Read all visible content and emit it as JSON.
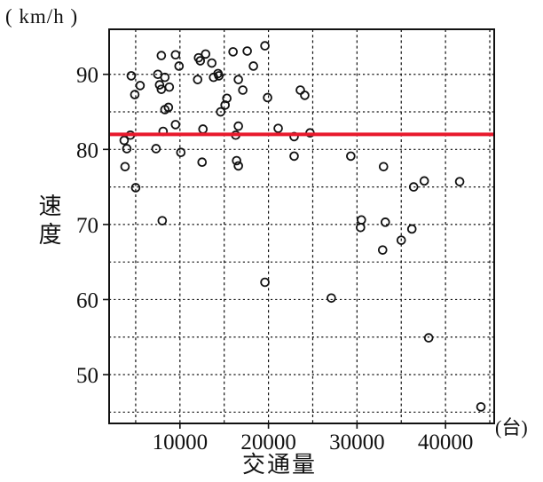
{
  "chart_data": {
    "type": "scatter",
    "title": "",
    "xlabel": "交通量",
    "xunit": "(台)",
    "ylabel": "速度",
    "yunit": "( km/h )",
    "xlim": [
      2000,
      45500
    ],
    "ylim": [
      43.5,
      96
    ],
    "x_ticks": [
      10000,
      20000,
      30000,
      40000
    ],
    "y_ticks": [
      90,
      80,
      70,
      60,
      50
    ],
    "x_gridlines": [
      5000,
      10000,
      15000,
      20000,
      25000,
      30000,
      35000,
      40000,
      45000
    ],
    "y_gridlines": [
      45,
      50,
      55,
      60,
      65,
      70,
      75,
      80,
      85,
      90
    ],
    "grid_style": "dashed",
    "legend": "none",
    "marker": "open-circle",
    "marker_color": "#111111",
    "reference_line": {
      "y": 82,
      "color": "#e8192c"
    },
    "points": [
      [
        7900,
        92.5
      ],
      [
        9500,
        92.6
      ],
      [
        9900,
        91.1
      ],
      [
        12100,
        92.2
      ],
      [
        12300,
        91.8
      ],
      [
        12900,
        92.7
      ],
      [
        13600,
        91.5
      ],
      [
        16000,
        93.0
      ],
      [
        17600,
        93.1
      ],
      [
        19600,
        93.8
      ],
      [
        18300,
        91.1
      ],
      [
        4500,
        89.8
      ],
      [
        7500,
        90.0
      ],
      [
        8300,
        89.6
      ],
      [
        7700,
        88.6
      ],
      [
        7900,
        88.0
      ],
      [
        8800,
        88.3
      ],
      [
        5500,
        88.5
      ],
      [
        4900,
        87.3
      ],
      [
        12000,
        89.3
      ],
      [
        13800,
        89.6
      ],
      [
        14300,
        90.1
      ],
      [
        14400,
        89.8
      ],
      [
        16600,
        89.3
      ],
      [
        17100,
        87.9
      ],
      [
        19900,
        86.9
      ],
      [
        15300,
        86.8
      ],
      [
        15100,
        85.9
      ],
      [
        14600,
        85.0
      ],
      [
        8300,
        85.3
      ],
      [
        8700,
        85.6
      ],
      [
        9500,
        83.3
      ],
      [
        8100,
        82.4
      ],
      [
        12600,
        82.7
      ],
      [
        16600,
        83.1
      ],
      [
        23600,
        87.9
      ],
      [
        24100,
        87.2
      ],
      [
        21100,
        82.8
      ],
      [
        24700,
        82.2
      ],
      [
        22900,
        81.7
      ],
      [
        16300,
        81.9
      ],
      [
        4400,
        81.9
      ],
      [
        3700,
        81.2
      ],
      [
        4000,
        80.1
      ],
      [
        7300,
        80.1
      ],
      [
        10100,
        79.6
      ],
      [
        12500,
        78.3
      ],
      [
        16400,
        78.5
      ],
      [
        16600,
        77.8
      ],
      [
        22900,
        79.1
      ],
      [
        29300,
        79.1
      ],
      [
        3800,
        77.7
      ],
      [
        5000,
        74.9
      ],
      [
        8000,
        70.5
      ],
      [
        19600,
        62.3
      ],
      [
        27100,
        60.2
      ],
      [
        30500,
        70.6
      ],
      [
        30400,
        69.6
      ],
      [
        33200,
        70.3
      ],
      [
        33000,
        77.7
      ],
      [
        36400,
        75.0
      ],
      [
        37600,
        75.8
      ],
      [
        41600,
        75.7
      ],
      [
        36200,
        69.4
      ],
      [
        35000,
        67.9
      ],
      [
        32900,
        66.6
      ],
      [
        38100,
        54.9
      ],
      [
        44000,
        45.7
      ]
    ]
  }
}
